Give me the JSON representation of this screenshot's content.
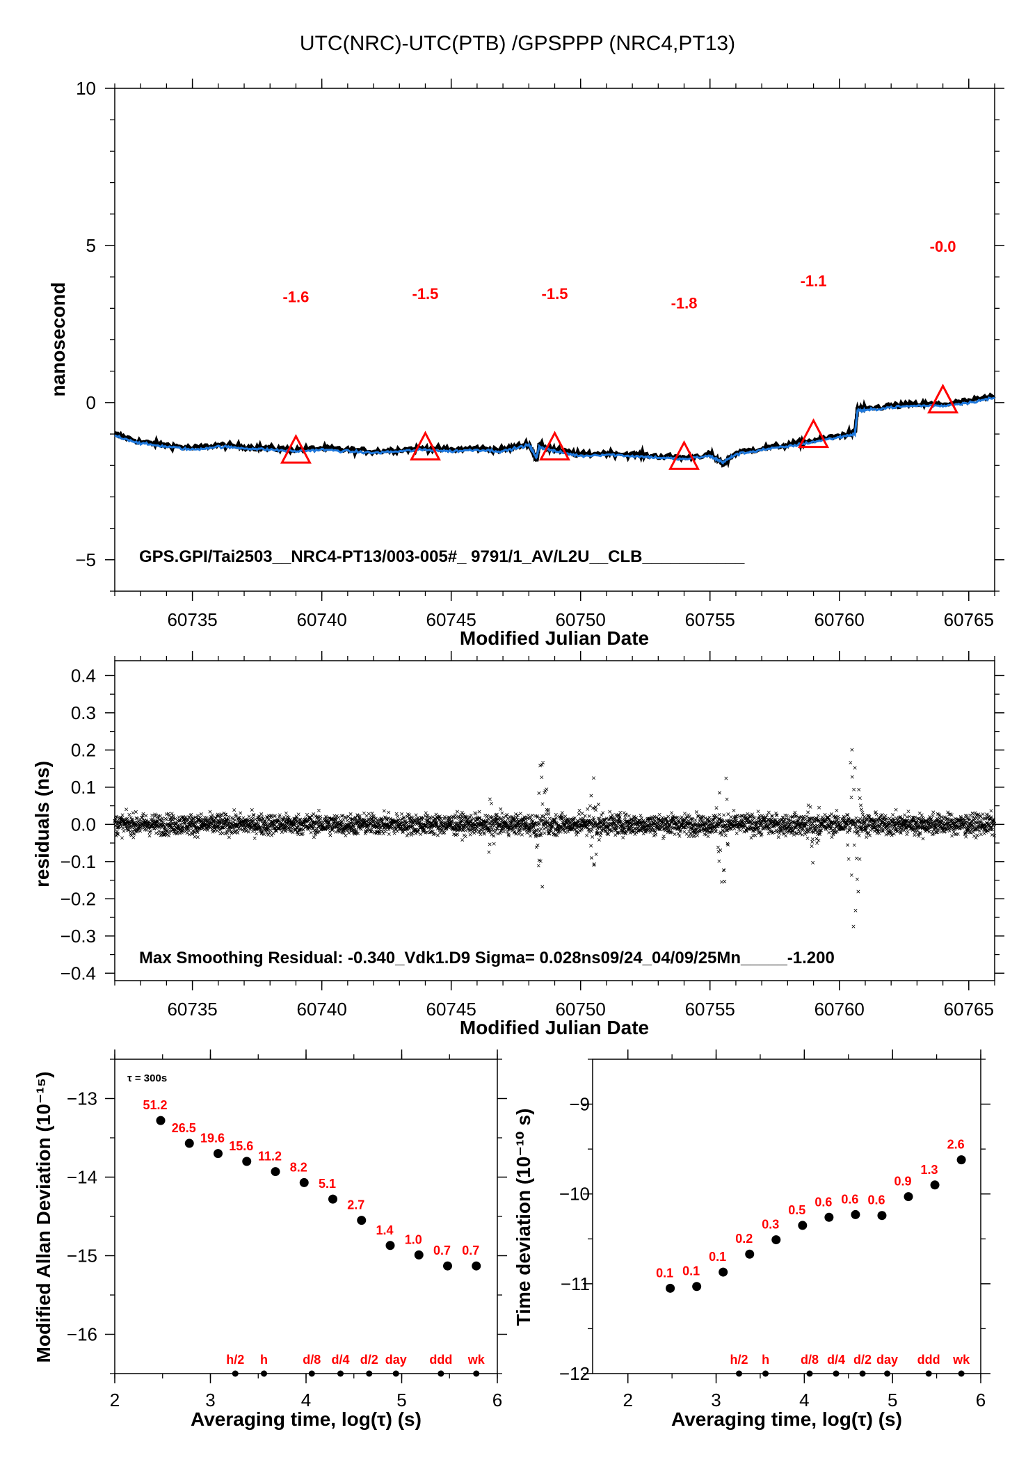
{
  "chart_data": [
    {
      "type": "line",
      "title": "UTC(NRC)-UTC(PTB)  /GPSPPP  (NRC4,PT13)",
      "xlabel": "Modified Julian Date",
      "ylabel": "nanosecond",
      "xlim": [
        60732,
        60766
      ],
      "ylim": [
        -6,
        10
      ],
      "xticks": [
        "60735",
        "60740",
        "60745",
        "60750",
        "60755",
        "60760",
        "60765"
      ],
      "yticks": [
        "−5",
        "0",
        "5",
        "10"
      ],
      "series": [
        {
          "color": "#000000",
          "x": [
            60732,
            60733,
            60734,
            60735,
            60736,
            60737,
            60738,
            60739,
            60740,
            60741,
            60742,
            60743,
            60744,
            60745,
            60746,
            60747,
            60748,
            60748.3,
            60748.4,
            60749,
            60750,
            60751,
            60752,
            60753,
            60754,
            60755,
            60755.5,
            60756,
            60757,
            60758,
            60759,
            60760,
            60760.6,
            60760.7,
            60761,
            60762,
            60763,
            60764,
            60765,
            60766
          ],
          "y": [
            -1.0,
            -1.25,
            -1.35,
            -1.45,
            -1.35,
            -1.4,
            -1.45,
            -1.5,
            -1.45,
            -1.5,
            -1.55,
            -1.5,
            -1.45,
            -1.5,
            -1.45,
            -1.5,
            -1.3,
            -1.85,
            -1.35,
            -1.5,
            -1.65,
            -1.6,
            -1.65,
            -1.7,
            -1.75,
            -1.65,
            -1.95,
            -1.6,
            -1.45,
            -1.35,
            -1.2,
            -1.05,
            -0.95,
            -0.2,
            -0.2,
            -0.1,
            -0.05,
            -0.05,
            0.05,
            0.2
          ]
        },
        {
          "color": "#1e78dc",
          "x": [
            60732,
            60733,
            60734,
            60735,
            60736,
            60737,
            60738,
            60739,
            60740,
            60741,
            60742,
            60743,
            60744,
            60745,
            60746,
            60747,
            60748,
            60748.3,
            60748.4,
            60749,
            60750,
            60751,
            60752,
            60753,
            60754,
            60755,
            60755.5,
            60756,
            60757,
            60758,
            60759,
            60760,
            60760.6,
            60760.7,
            60761,
            60762,
            60763,
            60764,
            60765,
            60766
          ],
          "y": [
            -1.05,
            -1.3,
            -1.4,
            -1.5,
            -1.4,
            -1.45,
            -1.5,
            -1.55,
            -1.5,
            -1.55,
            -1.6,
            -1.55,
            -1.5,
            -1.55,
            -1.5,
            -1.55,
            -1.35,
            -1.75,
            -1.4,
            -1.55,
            -1.7,
            -1.65,
            -1.7,
            -1.75,
            -1.8,
            -1.7,
            -1.9,
            -1.65,
            -1.5,
            -1.4,
            -1.25,
            -1.1,
            -1.0,
            -0.25,
            -0.25,
            -0.15,
            -0.1,
            -0.1,
            0.0,
            0.15
          ]
        }
      ],
      "markers": {
        "x": [
          60739,
          60744,
          60749,
          60754,
          60759,
          60764
        ],
        "y": [
          -1.6,
          -1.5,
          -1.5,
          -1.8,
          -1.1,
          -0.0
        ],
        "labels": [
          "-1.6",
          "-1.5",
          "-1.5",
          "-1.8",
          "-1.1",
          "-0.0"
        ],
        "label_y": [
          3.2,
          3.3,
          3.3,
          3.0,
          3.7,
          4.8
        ],
        "color": "#ff0000"
      },
      "annotation": "GPS.GPI/Tai2503__NRC4-PT13/003-005#_  9791/1_AV/L2U__CLB___________"
    },
    {
      "type": "scatter",
      "xlabel": "Modified Julian Date",
      "ylabel": "residuals (ns)",
      "xlim": [
        60732,
        60766
      ],
      "ylim": [
        -0.42,
        0.44
      ],
      "xticks": [
        "60735",
        "60740",
        "60745",
        "60750",
        "60755",
        "60760",
        "60765"
      ],
      "yticks": [
        "−0.4",
        "−0.3",
        "−0.2",
        "−0.1",
        "0.0",
        "0.1",
        "0.2",
        "0.3",
        "0.4"
      ],
      "bursts": [
        {
          "x": 60746.5,
          "amp": 0.1
        },
        {
          "x": 60748.5,
          "amp": 0.2
        },
        {
          "x": 60750.5,
          "amp": 0.13
        },
        {
          "x": 60755.5,
          "amp": 0.19
        },
        {
          "x": 60759.0,
          "amp": 0.13
        },
        {
          "x": 60760.6,
          "amp": 0.34
        }
      ],
      "noise_sigma": 0.028,
      "marker_color": "#000000",
      "annotation": "Max Smoothing Residual: -0.340_Vdk1.D9  Sigma= 0.028ns09/24_04/09/25Mn_____-1.200"
    },
    {
      "type": "scatter",
      "xlabel": "Averaging time, log(τ) (s)",
      "ylabel": "Modified Allan Deviation (10⁻¹⁵)",
      "xlim": [
        2,
        6
      ],
      "ylim": [
        -16.5,
        -12.5
      ],
      "xticks": [
        "2",
        "3",
        "4",
        "5",
        "6"
      ],
      "yticks": [
        "−16",
        "−15",
        "−14",
        "−13"
      ],
      "tau_note": "τ = 300s",
      "x": [
        2.48,
        2.78,
        3.08,
        3.38,
        3.68,
        3.98,
        4.28,
        4.58,
        4.88,
        5.18,
        5.48,
        5.78
      ],
      "y": [
        -13.28,
        -13.57,
        -13.7,
        -13.8,
        -13.93,
        -14.07,
        -14.28,
        -14.55,
        -14.87,
        -14.99,
        -15.13,
        -15.13
      ],
      "labels": [
        "51.2",
        "26.5",
        "19.6",
        "15.6",
        "11.2",
        "8.2",
        "5.1",
        "2.7",
        "1.4",
        "1.0",
        "0.7",
        "0.7"
      ],
      "time_marks": [
        {
          "x": 3.26,
          "label": "h/2"
        },
        {
          "x": 3.56,
          "label": "h"
        },
        {
          "x": 4.06,
          "label": "d/8"
        },
        {
          "x": 4.36,
          "label": "d/4"
        },
        {
          "x": 4.66,
          "label": "d/2"
        },
        {
          "x": 4.94,
          "label": "day"
        },
        {
          "x": 5.41,
          "label": "ddd"
        },
        {
          "x": 5.78,
          "label": "wk"
        }
      ]
    },
    {
      "type": "scatter",
      "xlabel": "Averaging time, log(τ) (s)",
      "ylabel": "Time deviation (10⁻¹⁰ s)",
      "xlim": [
        1.6,
        6.0
      ],
      "ylim": [
        -12,
        -8.5
      ],
      "xticks": [
        "2",
        "3",
        "4",
        "5",
        "6"
      ],
      "yticks": [
        "−12",
        "−11",
        "−10",
        "−9"
      ],
      "x": [
        2.48,
        2.78,
        3.08,
        3.38,
        3.68,
        3.98,
        4.28,
        4.58,
        4.88,
        5.18,
        5.48,
        5.78
      ],
      "y": [
        -11.05,
        -11.03,
        -10.87,
        -10.67,
        -10.51,
        -10.35,
        -10.26,
        -10.23,
        -10.24,
        -10.03,
        -9.9,
        -9.62
      ],
      "labels": [
        "0.1",
        "0.1",
        "0.1",
        "0.2",
        "0.3",
        "0.5",
        "0.6",
        "0.6",
        "0.6",
        "0.9",
        "1.3",
        "2.6"
      ],
      "time_marks": [
        {
          "x": 3.26,
          "label": "h/2"
        },
        {
          "x": 3.56,
          "label": "h"
        },
        {
          "x": 4.06,
          "label": "d/8"
        },
        {
          "x": 4.36,
          "label": "d/4"
        },
        {
          "x": 4.66,
          "label": "d/2"
        },
        {
          "x": 4.94,
          "label": "day"
        },
        {
          "x": 5.41,
          "label": "ddd"
        },
        {
          "x": 5.78,
          "label": "wk"
        }
      ]
    }
  ]
}
